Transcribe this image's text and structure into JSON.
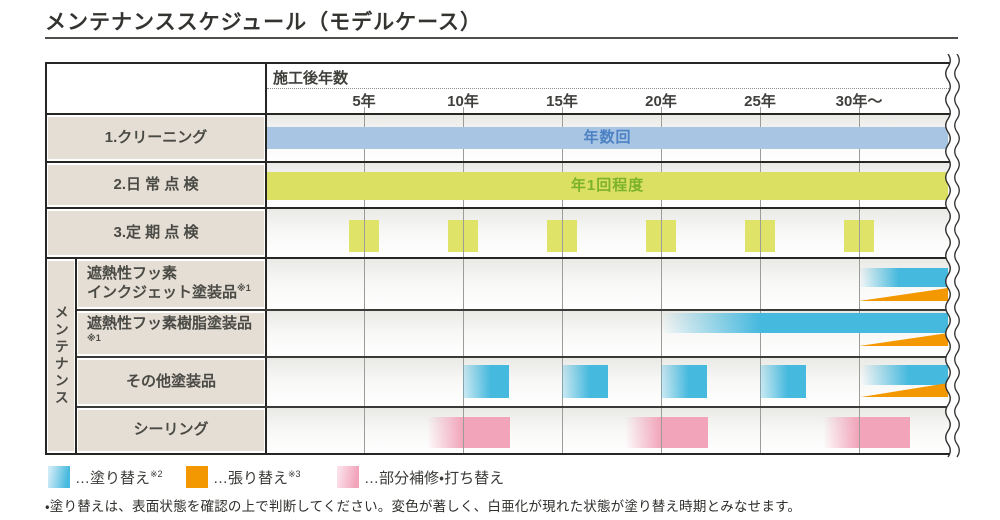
{
  "title": "メンテナンススケジュール（モデルケース）",
  "table": {
    "axis_title": "施工後年数",
    "group_label": "メンテナンス",
    "rows": {
      "cleaning": {
        "label": "1.クリーニング"
      },
      "daily": {
        "label": "2.日 常 点 検"
      },
      "periodic": {
        "label": "3.定 期 点 検"
      },
      "inkjet": {
        "label_line1": "遮熱性フッ素",
        "label_line2": "インクジェット塗装品",
        "sup": "※1"
      },
      "resin": {
        "label": "遮熱性フッ素樹脂塗装品",
        "sup": "※1"
      },
      "other": {
        "label": "その他塗装品"
      },
      "sealing": {
        "label": "シーリング"
      }
    }
  },
  "legend": {
    "items": [
      {
        "label": "…塗り替え",
        "sup": "※2",
        "swatch": "cyan-gradient"
      },
      {
        "label": "…張り替え",
        "sup": "※3",
        "swatch": "orange"
      },
      {
        "label": "…部分補修・打ち替え",
        "sup": "",
        "swatch": "pink-gradient"
      }
    ]
  },
  "footnote": "・塗り替えは、表面状態を確認の上で判断してください。変色が著しく、白亜化が現れた状態が塗り替え時期とみなせます。",
  "colors": {
    "lightblue": "#a8c5e4",
    "blue_text": "#4d82c4",
    "yellowgreen": "#dbe063",
    "tickyellow": "#dfe368",
    "green_text": "#7db32a",
    "cyan": "#46b9de",
    "orange": "#f39800",
    "pink": "#f2a4bb",
    "label_bg": "#e5ded4",
    "grid": "#9c9c99",
    "border": "#262624"
  },
  "chart_data": {
    "type": "gantt",
    "title": "メンテナンススケジュール（モデルケース）",
    "x_axis": {
      "label": "施工後年数",
      "tick_labels": [
        "5年",
        "10年",
        "15年",
        "20年",
        "25年",
        "30年～"
      ],
      "tick_years": [
        5,
        10,
        15,
        20,
        25,
        30
      ],
      "year_range": [
        0,
        34.5
      ],
      "grid": true
    },
    "rows": [
      {
        "name": "1.クリーニング",
        "bars": [
          {
            "type": "bar",
            "color": "lightblue",
            "start": 0,
            "end": 34.5,
            "label": "年数回",
            "label_color": "blue_text"
          }
        ]
      },
      {
        "name": "2.日常点検",
        "bars": [
          {
            "type": "bar",
            "color": "yellowgreen",
            "start": 0,
            "end": 34.5,
            "label": "年1回程度",
            "label_color": "green_text"
          }
        ]
      },
      {
        "name": "3.定期点検",
        "bars": [
          {
            "type": "tick",
            "color": "tickyellow",
            "years": [
              5,
              10,
              15,
              20,
              25,
              30
            ],
            "width_years": 1.5
          }
        ]
      },
      {
        "name": "遮熱性フッ素インクジェット塗装品※1",
        "group": "メンテナンス",
        "bars": [
          {
            "type": "fadebar",
            "color": "cyan",
            "start": 30,
            "end": 34.5,
            "solid_at": 32
          },
          {
            "type": "wedge",
            "color": "orange",
            "start": 30,
            "end": 34.5
          }
        ]
      },
      {
        "name": "遮熱性フッ素樹脂塗装品※1",
        "group": "メンテナンス",
        "bars": [
          {
            "type": "fadebar",
            "color": "cyan",
            "start": 20,
            "end": 34.5,
            "solid_at": 25
          },
          {
            "type": "wedge",
            "color": "orange",
            "start": 30,
            "end": 34.5
          }
        ]
      },
      {
        "name": "その他塗装品",
        "group": "メンテナンス",
        "bars": [
          {
            "type": "fadetick",
            "color": "cyan",
            "years": [
              10,
              15,
              20,
              25
            ],
            "width_years": 2.3,
            "solid_frac": 0.6
          },
          {
            "type": "fadebar",
            "color": "cyan",
            "start": 30.1,
            "end": 34.5,
            "solid_at": 32.5,
            "thin": true
          },
          {
            "type": "wedge",
            "color": "orange",
            "start": 30.1,
            "end": 34.5
          }
        ]
      },
      {
        "name": "シーリング",
        "group": "メンテナンス",
        "bars": [
          {
            "type": "fadebar",
            "color": "pink",
            "start": 8.2,
            "end": 12.35,
            "solid_at": 10
          },
          {
            "type": "fadebar",
            "color": "pink",
            "start": 18.2,
            "end": 22.35,
            "solid_at": 20
          },
          {
            "type": "fadebar",
            "color": "pink",
            "start": 28.2,
            "end": 32.6,
            "solid_at": 30
          }
        ]
      }
    ],
    "legend": [
      "塗り替え※2",
      "張り替え※3",
      "部分補修・打ち替え"
    ]
  }
}
